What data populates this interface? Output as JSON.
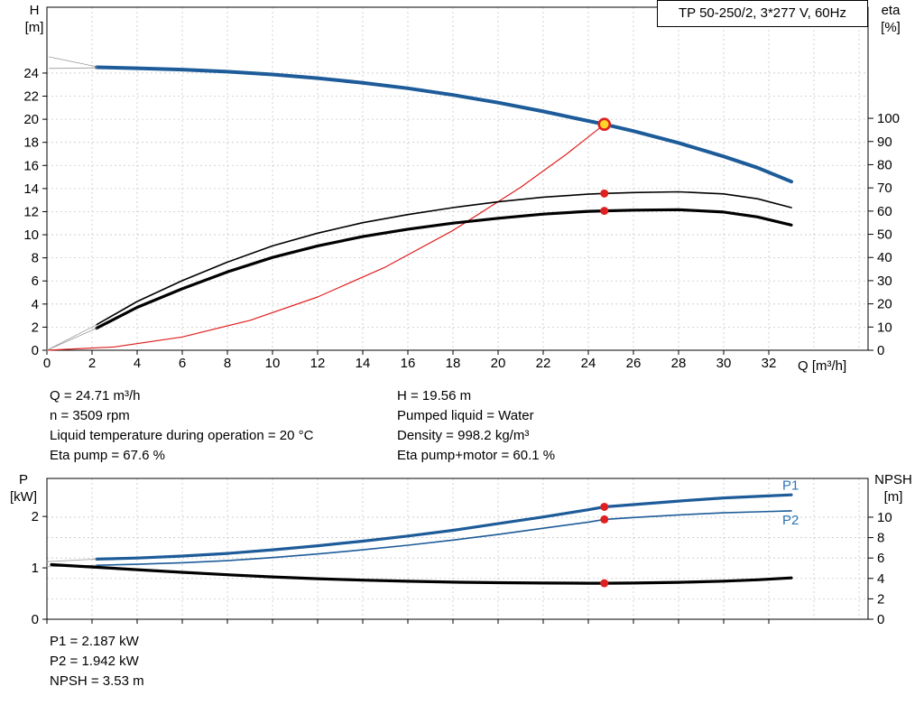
{
  "title_box": {
    "text": "TP 50-250/2, 3*277 V, 60Hz"
  },
  "info": {
    "left": [
      "Q = 24.71 m³/h",
      "n = 3509 rpm",
      "Liquid temperature during operation = 20 °C",
      "Eta pump = 67.6 %"
    ],
    "right": [
      "H = 19.56 m",
      "Pumped liquid = Water",
      "Density = 998.2 kg/m³",
      "Eta pump+motor = 60.1 %"
    ]
  },
  "footer": [
    "P1 = 2.187 kW",
    "P2 = 1.942 kW",
    "NPSH = 3.53 m"
  ],
  "colors": {
    "curve_blue": "#1d5b99",
    "curve_black": "#000000",
    "curve_red": "#e02020",
    "label_blue": "#2e75b6",
    "marker_fill": "#ffd42a",
    "grid": "#c8c8c8",
    "connector": "#999999"
  },
  "chart_data": [
    {
      "id": "qh-eta-chart",
      "type": "line",
      "grid_y": "left",
      "x_axis": {
        "label": "Q [m³/h]",
        "min": 0,
        "max": 36.4,
        "ticks": [
          0,
          2,
          4,
          6,
          8,
          10,
          12,
          14,
          16,
          18,
          20,
          22,
          24,
          26,
          28,
          30,
          32
        ],
        "extra_grid": [
          34,
          36
        ],
        "show_labels": true
      },
      "y_left": {
        "label1": "H",
        "label2": "[m]",
        "min": 0,
        "max": 29.7,
        "ticks": [
          0,
          2,
          4,
          6,
          8,
          10,
          12,
          14,
          16,
          18,
          20,
          22,
          24
        ]
      },
      "y_right": {
        "label1": "eta",
        "label2": "[%]",
        "min": 0,
        "max": 147.9,
        "ticks": [
          0,
          10,
          20,
          30,
          40,
          50,
          60,
          70,
          80,
          90,
          100
        ]
      },
      "series": [
        {
          "name": "pump-head-curve",
          "axis": "left",
          "color": "blue",
          "width": 4,
          "points": [
            [
              2.2,
              24.5
            ],
            [
              4,
              24.42
            ],
            [
              6,
              24.3
            ],
            [
              8,
              24.12
            ],
            [
              10,
              23.88
            ],
            [
              12,
              23.56
            ],
            [
              14,
              23.16
            ],
            [
              16,
              22.68
            ],
            [
              18,
              22.1
            ],
            [
              20,
              21.44
            ],
            [
              22,
              20.68
            ],
            [
              24,
              19.85
            ],
            [
              24.71,
              19.56
            ],
            [
              26,
              18.98
            ],
            [
              28,
              17.95
            ],
            [
              30,
              16.78
            ],
            [
              31.5,
              15.8
            ],
            [
              33,
              14.6
            ]
          ]
        },
        {
          "name": "head-tolerance-upper",
          "axis": "left",
          "color": "connector",
          "width": 0.8,
          "points": [
            [
              0.1,
              25.4
            ],
            [
              2.2,
              24.55
            ]
          ]
        },
        {
          "name": "head-tolerance-lower",
          "axis": "left",
          "color": "connector",
          "width": 0.8,
          "points": [
            [
              0.1,
              24.4
            ],
            [
              2.2,
              24.45
            ]
          ]
        },
        {
          "name": "system-curve",
          "axis": "left",
          "color": "red",
          "width": 1.2,
          "points": [
            [
              0,
              0
            ],
            [
              3,
              0.29
            ],
            [
              6,
              1.15
            ],
            [
              9,
              2.59
            ],
            [
              12,
              4.61
            ],
            [
              15,
              7.2
            ],
            [
              18,
              10.37
            ],
            [
              21,
              14.11
            ],
            [
              23,
              16.93
            ],
            [
              24.71,
              19.56
            ]
          ]
        },
        {
          "name": "eta-pump-curve",
          "axis": "right",
          "color": "black",
          "width": 1.6,
          "points": [
            [
              2.2,
              11
            ],
            [
              4,
              21
            ],
            [
              6,
              30
            ],
            [
              8,
              38
            ],
            [
              10,
              45
            ],
            [
              12,
              50.5
            ],
            [
              14,
              55
            ],
            [
              16,
              58.5
            ],
            [
              18,
              61.5
            ],
            [
              20,
              64
            ],
            [
              22,
              66
            ],
            [
              24,
              67.3
            ],
            [
              24.71,
              67.6
            ],
            [
              26,
              68
            ],
            [
              28,
              68.3
            ],
            [
              30,
              67.4
            ],
            [
              31.5,
              65.3
            ],
            [
              33,
              61.5
            ]
          ]
        },
        {
          "name": "eta-pump-motor-curve",
          "axis": "right",
          "color": "black",
          "width": 3.2,
          "points": [
            [
              2.2,
              9.5
            ],
            [
              4,
              18.5
            ],
            [
              6,
              26.5
            ],
            [
              8,
              33.8
            ],
            [
              10,
              40
            ],
            [
              12,
              45
            ],
            [
              14,
              49
            ],
            [
              16,
              52.2
            ],
            [
              18,
              54.8
            ],
            [
              20,
              56.9
            ],
            [
              22,
              58.7
            ],
            [
              24,
              59.9
            ],
            [
              24.71,
              60.1
            ],
            [
              26,
              60.4
            ],
            [
              28,
              60.6
            ],
            [
              30,
              59.6
            ],
            [
              31.5,
              57.5
            ],
            [
              33,
              54
            ]
          ]
        },
        {
          "name": "eta-pump-connector",
          "axis": "right",
          "color": "connector",
          "width": 0.8,
          "points": [
            [
              0,
              0
            ],
            [
              2.2,
              11
            ]
          ]
        },
        {
          "name": "eta-pump-motor-connector",
          "axis": "right",
          "color": "connector",
          "width": 0.8,
          "points": [
            [
              0,
              0
            ],
            [
              2.2,
              9.5
            ]
          ]
        }
      ],
      "markers": [
        {
          "name": "duty-point",
          "axis": "left",
          "x": 24.71,
          "y": 19.56,
          "style": "ring"
        },
        {
          "name": "eta-pump-duty-dot",
          "axis": "right",
          "x": 24.71,
          "y": 67.6,
          "style": "dot"
        },
        {
          "name": "eta-pump-motor-duty-dot",
          "axis": "right",
          "x": 24.71,
          "y": 60.1,
          "style": "dot"
        }
      ]
    },
    {
      "id": "power-npsh-chart",
      "type": "line",
      "grid_y": "right",
      "x_axis": {
        "label": "",
        "min": 0,
        "max": 36.4,
        "ticks": [
          0,
          2,
          4,
          6,
          8,
          10,
          12,
          14,
          16,
          18,
          20,
          22,
          24,
          26,
          28,
          30,
          32
        ],
        "extra_grid": [
          34,
          36
        ],
        "show_labels": false
      },
      "y_left": {
        "label1": "P",
        "label2": "[kW]",
        "min": 0,
        "max": 2.74,
        "ticks": [
          0,
          1,
          2
        ]
      },
      "y_right": {
        "label1": "NPSH",
        "label2": "[m]",
        "min": 0,
        "max": 13.8,
        "ticks": [
          0,
          2,
          4,
          6,
          8,
          10
        ]
      },
      "series": [
        {
          "name": "p1-curve",
          "axis": "left",
          "color": "blue",
          "width": 3.2,
          "points": [
            [
              2.2,
              1.17
            ],
            [
              4,
              1.19
            ],
            [
              6,
              1.23
            ],
            [
              8,
              1.28
            ],
            [
              10,
              1.35
            ],
            [
              12,
              1.43
            ],
            [
              14,
              1.52
            ],
            [
              16,
              1.62
            ],
            [
              18,
              1.73
            ],
            [
              20,
              1.86
            ],
            [
              22,
              1.99
            ],
            [
              24,
              2.13
            ],
            [
              24.71,
              2.187
            ],
            [
              26,
              2.23
            ],
            [
              28,
              2.3
            ],
            [
              30,
              2.36
            ],
            [
              31.5,
              2.39
            ],
            [
              33,
              2.42
            ]
          ],
          "label": {
            "text": "P1",
            "x": 32.6,
            "y": 2.52
          }
        },
        {
          "name": "p2-curve",
          "axis": "left",
          "color": "blue",
          "width": 1.6,
          "points": [
            [
              2.2,
              1.05
            ],
            [
              4,
              1.07
            ],
            [
              6,
              1.1
            ],
            [
              8,
              1.14
            ],
            [
              10,
              1.2
            ],
            [
              12,
              1.27
            ],
            [
              14,
              1.35
            ],
            [
              16,
              1.44
            ],
            [
              18,
              1.54
            ],
            [
              20,
              1.65
            ],
            [
              22,
              1.77
            ],
            [
              24,
              1.89
            ],
            [
              24.71,
              1.942
            ],
            [
              26,
              1.98
            ],
            [
              28,
              2.03
            ],
            [
              30,
              2.07
            ],
            [
              31.5,
              2.09
            ],
            [
              33,
              2.11
            ]
          ],
          "label": {
            "text": "P2",
            "x": 32.6,
            "y": 1.84
          }
        },
        {
          "name": "p1-connector",
          "axis": "left",
          "color": "connector",
          "width": 0.8,
          "points": [
            [
              0,
              1.12
            ],
            [
              2.2,
              1.17
            ]
          ]
        },
        {
          "name": "p2-connector",
          "axis": "left",
          "color": "connector",
          "width": 0.8,
          "points": [
            [
              0,
              1.02
            ],
            [
              2.2,
              1.05
            ]
          ]
        },
        {
          "name": "npsh-curve",
          "axis": "right",
          "color": "black",
          "width": 3.2,
          "points": [
            [
              0.2,
              5.35
            ],
            [
              2,
              5.12
            ],
            [
              4,
              4.86
            ],
            [
              6,
              4.6
            ],
            [
              8,
              4.36
            ],
            [
              10,
              4.15
            ],
            [
              12,
              3.97
            ],
            [
              14,
              3.83
            ],
            [
              16,
              3.72
            ],
            [
              18,
              3.64
            ],
            [
              20,
              3.58
            ],
            [
              22,
              3.55
            ],
            [
              24,
              3.53
            ],
            [
              24.71,
              3.53
            ],
            [
              26,
              3.55
            ],
            [
              28,
              3.62
            ],
            [
              30,
              3.73
            ],
            [
              31.5,
              3.87
            ],
            [
              33,
              4.05
            ]
          ]
        }
      ],
      "markers": [
        {
          "name": "p1-duty-dot",
          "axis": "left",
          "x": 24.71,
          "y": 2.187,
          "style": "dot"
        },
        {
          "name": "p2-duty-dot",
          "axis": "left",
          "x": 24.71,
          "y": 1.942,
          "style": "dot"
        },
        {
          "name": "npsh-duty-dot",
          "axis": "right",
          "x": 24.71,
          "y": 3.53,
          "style": "dot"
        }
      ]
    }
  ]
}
